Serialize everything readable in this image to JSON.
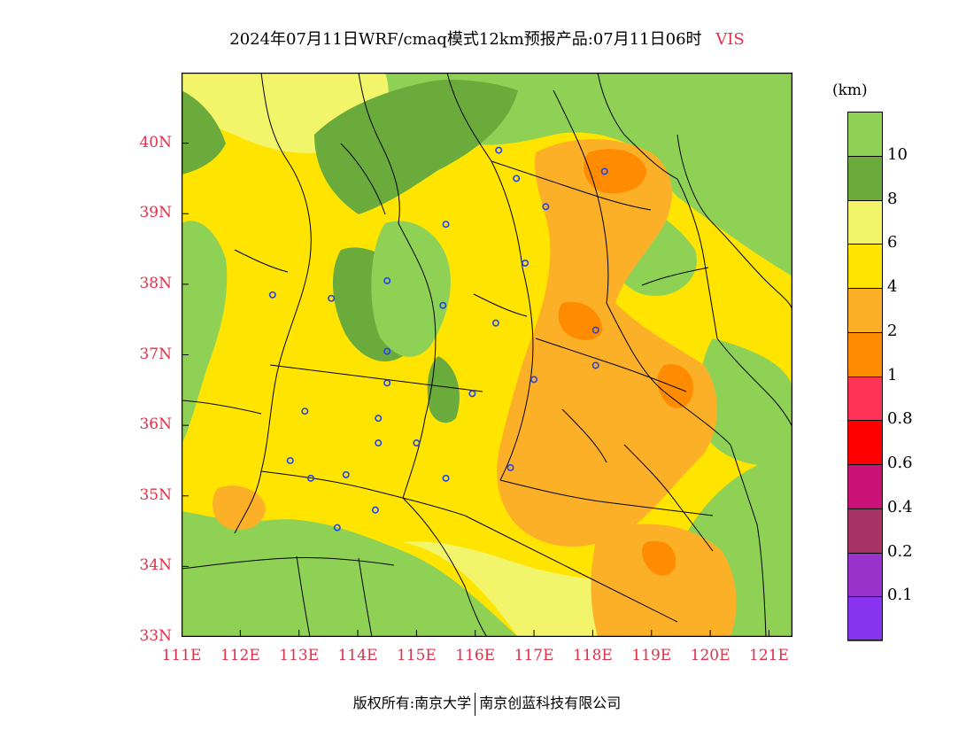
{
  "title": {
    "text": "2024年07月11日WRF/cmaq模式12km预报产品:07月11日06时",
    "variable": "VIS"
  },
  "map": {
    "lat_labels": [
      "40N",
      "39N",
      "38N",
      "37N",
      "36N",
      "35N",
      "34N",
      "33N"
    ],
    "lon_labels": [
      "111E",
      "112E",
      "113E",
      "114E",
      "115E",
      "116E",
      "117E",
      "118E",
      "119E",
      "120E",
      "121E"
    ],
    "lat_range": [
      33,
      41
    ],
    "lon_range": [
      111,
      121.4
    ],
    "colors": {
      "very_good": "#8fd155",
      "good": "#6aab3c",
      "light": "#f2f56a",
      "yellow": "#ffe400",
      "orange": "#fbb028",
      "dark_orange": "#ff8c00",
      "border": "#000000",
      "station": "#2244ee"
    },
    "stations": [
      [
        116.4,
        39.9
      ],
      [
        116.7,
        39.5
      ],
      [
        117.2,
        39.1
      ],
      [
        115.5,
        38.85
      ],
      [
        116.85,
        38.3
      ],
      [
        112.55,
        37.85
      ],
      [
        113.55,
        37.8
      ],
      [
        114.5,
        38.05
      ],
      [
        115.45,
        37.7
      ],
      [
        116.35,
        37.45
      ],
      [
        114.5,
        37.05
      ],
      [
        114.5,
        36.6
      ],
      [
        117.0,
        36.65
      ],
      [
        118.05,
        37.35
      ],
      [
        118.05,
        36.85
      ],
      [
        113.1,
        36.2
      ],
      [
        114.35,
        36.1
      ],
      [
        115.95,
        36.45
      ],
      [
        112.85,
        35.5
      ],
      [
        113.2,
        35.25
      ],
      [
        113.8,
        35.3
      ],
      [
        114.35,
        35.75
      ],
      [
        115.0,
        35.75
      ],
      [
        115.5,
        35.25
      ],
      [
        116.6,
        35.4
      ],
      [
        114.3,
        34.8
      ],
      [
        113.65,
        34.55
      ],
      [
        118.2,
        39.6
      ]
    ]
  },
  "colorbar": {
    "unit": "(km)",
    "levels": [
      "10",
      "8",
      "6",
      "4",
      "2",
      "1",
      "0.8",
      "0.6",
      "0.4",
      "0.2",
      "0.1"
    ],
    "colors": [
      "#8fd155",
      "#6aab3c",
      "#f2f56a",
      "#ffe400",
      "#fbb028",
      "#ff8c00",
      "#ff3355",
      "#ff0000",
      "#cc1177",
      "#aa3366",
      "#9933cc",
      "#8833ee"
    ]
  },
  "footer": {
    "left": "版权所有:南京大学",
    "right": "南京创蓝科技有限公司"
  }
}
